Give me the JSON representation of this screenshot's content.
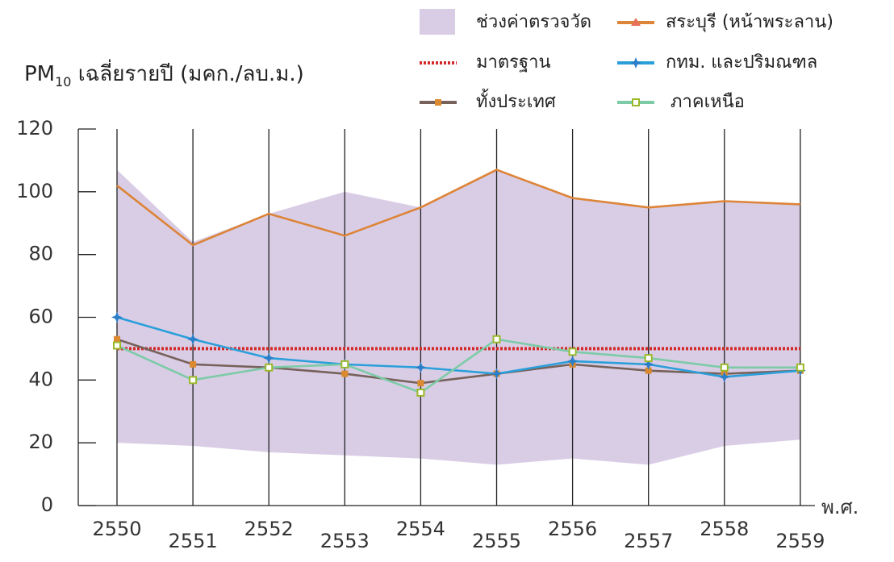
{
  "chart_data": {
    "type": "line",
    "title": {
      "main": "PM",
      "sub": "10",
      "rest": " เฉลี่ยรายปี (มคก./ลบ.ม.)"
    },
    "x_label": "พ.ศ.",
    "categories": [
      "2550",
      "2551",
      "2552",
      "2553",
      "2554",
      "2555",
      "2556",
      "2557",
      "2558",
      "2559"
    ],
    "range": {
      "name": "ช่วงค่าตรวจวัด",
      "color": "#d9cde6",
      "high": [
        107,
        84,
        93,
        100,
        95,
        107,
        98,
        95,
        97,
        96
      ],
      "low": [
        20,
        19,
        17,
        16,
        15,
        13,
        15,
        13,
        19,
        21
      ]
    },
    "series": [
      {
        "name": "มาตรฐาน",
        "color": "#d42a2a",
        "style": "dotted",
        "marker": "none",
        "values": [
          50,
          50,
          50,
          50,
          50,
          50,
          50,
          50,
          50,
          50
        ]
      },
      {
        "name": "ทั้งประเทศ",
        "color": "#76625a",
        "marker_color": "#db8a30",
        "marker": "square",
        "values": [
          53,
          45,
          44,
          42,
          39,
          42,
          45,
          43,
          42,
          43
        ]
      },
      {
        "name": "สระบุรี (หน้าพระลาน)",
        "color": "#dc8437",
        "marker_color": "#e8705a",
        "marker": "triangle",
        "values": [
          102,
          83,
          93,
          86,
          95,
          107,
          98,
          95,
          97,
          96
        ]
      },
      {
        "name": "กทม. และปริมณฑล",
        "color": "#2b9fda",
        "marker_color": "#2b7fc8",
        "marker": "star",
        "values": [
          60,
          53,
          47,
          45,
          44,
          42,
          46,
          45,
          41,
          43
        ]
      },
      {
        "name": "ภาคเหนือ",
        "color": "#7ccba6",
        "marker_color": "#9ab82a",
        "marker": "hollow-square",
        "values": [
          51,
          40,
          44,
          45,
          36,
          53,
          49,
          47,
          44,
          44
        ]
      }
    ],
    "ylim": [
      0,
      120
    ],
    "yticks": [
      0,
      20,
      40,
      60,
      80,
      100,
      120
    ],
    "grid": "vertical"
  }
}
